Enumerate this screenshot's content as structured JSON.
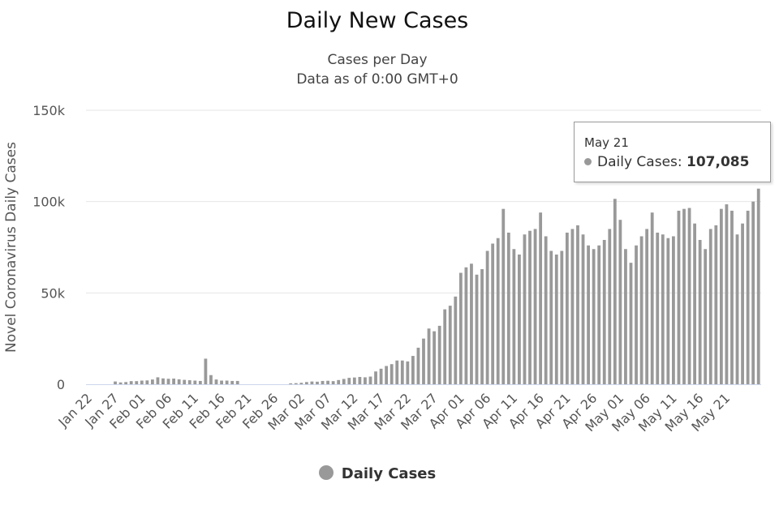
{
  "chart_data": {
    "type": "bar",
    "title": "Daily New Cases",
    "subtitle_lines": [
      "Cases per Day",
      "Data as of 0:00 GMT+0"
    ],
    "ylabel": "Novel Coronavirus Daily Cases",
    "xlabel": "",
    "ylim": [
      0,
      150000
    ],
    "y_ticks": [
      0,
      50000,
      100000,
      150000
    ],
    "y_tick_labels": [
      "0",
      "50k",
      "100k",
      "150k"
    ],
    "x_tick_labels": [
      "Jan 22",
      "Jan 27",
      "Feb 01",
      "Feb 06",
      "Feb 11",
      "Feb 16",
      "Feb 21",
      "Feb 26",
      "Mar 02",
      "Mar 07",
      "Mar 12",
      "Mar 17",
      "Mar 22",
      "Mar 27",
      "Apr 01",
      "Apr 06",
      "Apr 11",
      "Apr 16",
      "Apr 21",
      "Apr 26",
      "May 01",
      "May 06",
      "May 11",
      "May 16",
      "May 21"
    ],
    "x_tick_every": 5,
    "grid": true,
    "legend_position": "bottom-center",
    "series": [
      {
        "name": "Daily Cases",
        "color": "#999999",
        "values": [
          0,
          0,
          0,
          0,
          0,
          1500,
          1000,
          1200,
          1700,
          1700,
          2000,
          2100,
          2600,
          3800,
          3200,
          3000,
          3100,
          2700,
          2400,
          2200,
          2000,
          1800,
          14000,
          5000,
          2600,
          2000,
          2000,
          1800,
          1800,
          0,
          0,
          0,
          0,
          0,
          0,
          0,
          0,
          0,
          500,
          600,
          800,
          1200,
          1500,
          1400,
          1800,
          1900,
          1700,
          2300,
          2900,
          3500,
          3700,
          4000,
          3800,
          4200,
          7000,
          8500,
          10000,
          11000,
          13000,
          13000,
          12500,
          15500,
          20000,
          25000,
          30500,
          29000,
          32000,
          41000,
          43000,
          48000,
          61000,
          64000,
          66000,
          60000,
          63000,
          73000,
          77000,
          80000,
          96000,
          83000,
          74000,
          71000,
          82000,
          84000,
          85000,
          94000,
          81000,
          73000,
          71000,
          73000,
          83000,
          85000,
          87000,
          82000,
          76000,
          74000,
          76000,
          79000,
          85000,
          101500,
          90000,
          74000,
          66500,
          76000,
          81000,
          85000,
          94000,
          83000,
          82000,
          80000,
          81000,
          95000,
          96000,
          96500,
          88000,
          79000,
          74000,
          85000,
          87000,
          96000,
          98500,
          95000,
          82000,
          88000,
          95000,
          100000,
          107085
        ]
      }
    ]
  },
  "legend": {
    "label": "Daily Cases"
  },
  "tooltip": {
    "date": "May 21",
    "series_label": "Daily Cases:",
    "value": "107,085"
  }
}
